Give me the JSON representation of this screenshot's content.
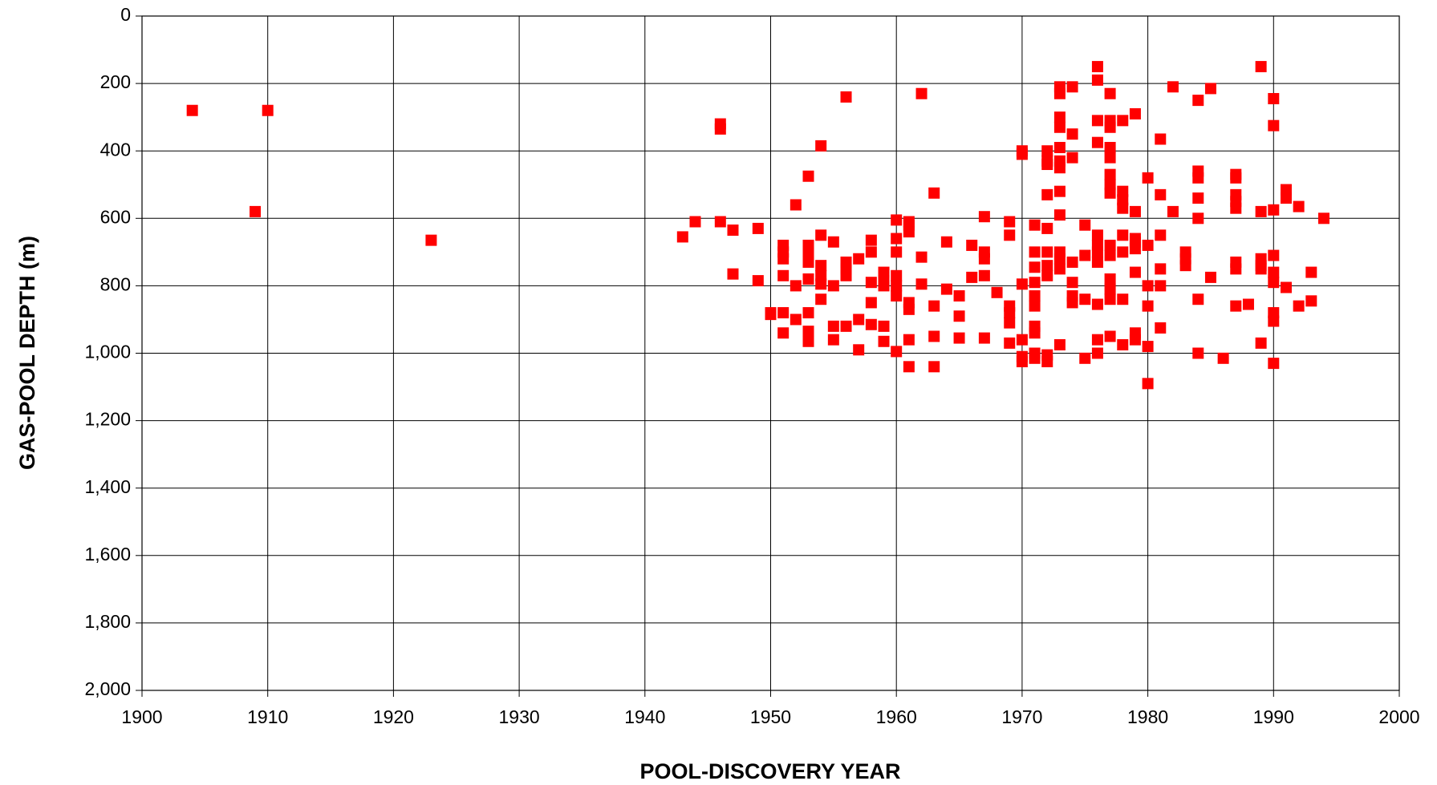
{
  "chart_data": {
    "type": "scatter",
    "xlabel": "POOL-DISCOVERY YEAR",
    "ylabel": "GAS-POOL DEPTH (m)",
    "xlim": [
      1900,
      2000
    ],
    "xticks": [
      1900,
      1910,
      1920,
      1930,
      1940,
      1950,
      1960,
      1970,
      1980,
      1990,
      2000
    ],
    "ylim": [
      2000,
      0
    ],
    "yticks": [
      0,
      200,
      400,
      600,
      800,
      {
        "value": 1000,
        "label": "1,000"
      },
      {
        "value": 1200,
        "label": "1,200"
      },
      {
        "value": 1400,
        "label": "1,400"
      },
      {
        "value": 1600,
        "label": "1,600"
      },
      {
        "value": 1800,
        "label": "1,800"
      },
      {
        "value": 2000,
        "label": "2,000"
      }
    ],
    "grid": true,
    "color": "#ff0000",
    "x": [
      1904,
      1909,
      1910,
      1923,
      1943,
      1944,
      1946,
      1946,
      1946,
      1947,
      1947,
      1949,
      1949,
      1950,
      1950,
      1951,
      1951,
      1951,
      1951,
      1951,
      1951,
      1952,
      1952,
      1952,
      1953,
      1953,
      1953,
      1953,
      1953,
      1953,
      1953,
      1953,
      1954,
      1954,
      1954,
      1954,
      1954,
      1954,
      1955,
      1955,
      1955,
      1955,
      1956,
      1956,
      1956,
      1956,
      1956,
      1957,
      1957,
      1957,
      1958,
      1958,
      1958,
      1958,
      1958,
      1959,
      1959,
      1959,
      1959,
      1959,
      1960,
      1960,
      1960,
      1960,
      1960,
      1960,
      1960,
      1961,
      1961,
      1961,
      1961,
      1961,
      1961,
      1961,
      1962,
      1962,
      1962,
      1963,
      1963,
      1963,
      1963,
      1964,
      1964,
      1965,
      1965,
      1965,
      1966,
      1966,
      1967,
      1967,
      1967,
      1967,
      1967,
      1968,
      1969,
      1969,
      1969,
      1969,
      1969,
      1969,
      1970,
      1970,
      1970,
      1970,
      1970,
      1970,
      1971,
      1971,
      1971,
      1971,
      1971,
      1971,
      1971,
      1971,
      1971,
      1971,
      1972,
      1972,
      1972,
      1972,
      1972,
      1972,
      1972,
      1972,
      1972,
      1972,
      1973,
      1973,
      1973,
      1973,
      1973,
      1973,
      1973,
      1973,
      1973,
      1973,
      1973,
      1973,
      1973,
      1974,
      1974,
      1974,
      1974,
      1974,
      1974,
      1974,
      1975,
      1975,
      1975,
      1975,
      1976,
      1976,
      1976,
      1976,
      1976,
      1976,
      1976,
      1976,
      1976,
      1976,
      1976,
      1977,
      1977,
      1977,
      1977,
      1977,
      1977,
      1977,
      1977,
      1977,
      1977,
      1977,
      1977,
      1977,
      1977,
      1978,
      1978,
      1978,
      1978,
      1978,
      1978,
      1978,
      1978,
      1979,
      1979,
      1979,
      1979,
      1979,
      1979,
      1979,
      1979,
      1980,
      1980,
      1980,
      1980,
      1980,
      1980,
      1981,
      1981,
      1981,
      1981,
      1981,
      1981,
      1982,
      1982,
      1983,
      1983,
      1983,
      1984,
      1984,
      1984,
      1984,
      1984,
      1984,
      1984,
      1985,
      1985,
      1986,
      1987,
      1987,
      1987,
      1987,
      1987,
      1987,
      1987,
      1987,
      1988,
      1989,
      1989,
      1989,
      1989,
      1989,
      1989,
      1990,
      1990,
      1990,
      1990,
      1990,
      1990,
      1990,
      1990,
      1990,
      1991,
      1991,
      1991,
      1992,
      1992,
      1993,
      1993,
      1994
    ],
    "values": [
      280,
      580,
      280,
      665,
      655,
      610,
      320,
      335,
      610,
      635,
      765,
      630,
      785,
      880,
      885,
      880,
      940,
      770,
      680,
      700,
      720,
      560,
      800,
      900,
      475,
      680,
      700,
      730,
      780,
      880,
      935,
      965,
      385,
      650,
      740,
      770,
      795,
      840,
      670,
      800,
      920,
      960,
      240,
      730,
      750,
      770,
      920,
      720,
      900,
      990,
      665,
      700,
      790,
      850,
      915,
      760,
      785,
      800,
      920,
      965,
      605,
      660,
      700,
      770,
      800,
      830,
      995,
      610,
      620,
      640,
      850,
      870,
      960,
      1040,
      230,
      715,
      795,
      525,
      860,
      950,
      1040,
      670,
      810,
      830,
      890,
      955,
      680,
      775,
      595,
      700,
      720,
      770,
      955,
      820,
      610,
      650,
      860,
      880,
      910,
      970,
      400,
      410,
      795,
      960,
      1010,
      1025,
      620,
      700,
      745,
      790,
      830,
      860,
      920,
      940,
      1000,
      1015,
      400,
      430,
      440,
      530,
      630,
      700,
      740,
      770,
      1005,
      1025,
      210,
      230,
      300,
      330,
      390,
      430,
      450,
      520,
      590,
      700,
      720,
      750,
      975,
      210,
      350,
      420,
      730,
      790,
      830,
      850,
      620,
      710,
      840,
      1015,
      150,
      190,
      310,
      375,
      650,
      680,
      700,
      730,
      855,
      960,
      1000,
      230,
      310,
      330,
      390,
      420,
      470,
      500,
      525,
      680,
      710,
      780,
      810,
      840,
      950,
      310,
      520,
      545,
      570,
      650,
      700,
      840,
      975,
      290,
      580,
      660,
      670,
      690,
      760,
      940,
      960,
      480,
      680,
      800,
      860,
      980,
      1090,
      365,
      530,
      650,
      750,
      800,
      925,
      210,
      580,
      700,
      720,
      740,
      250,
      460,
      480,
      540,
      600,
      840,
      1000,
      215,
      775,
      1015,
      470,
      480,
      530,
      550,
      570,
      730,
      750,
      860,
      855,
      150,
      580,
      720,
      740,
      750,
      970,
      245,
      325,
      575,
      710,
      760,
      790,
      880,
      905,
      1030,
      515,
      540,
      805,
      565,
      860,
      760,
      845,
      600
    ]
  }
}
